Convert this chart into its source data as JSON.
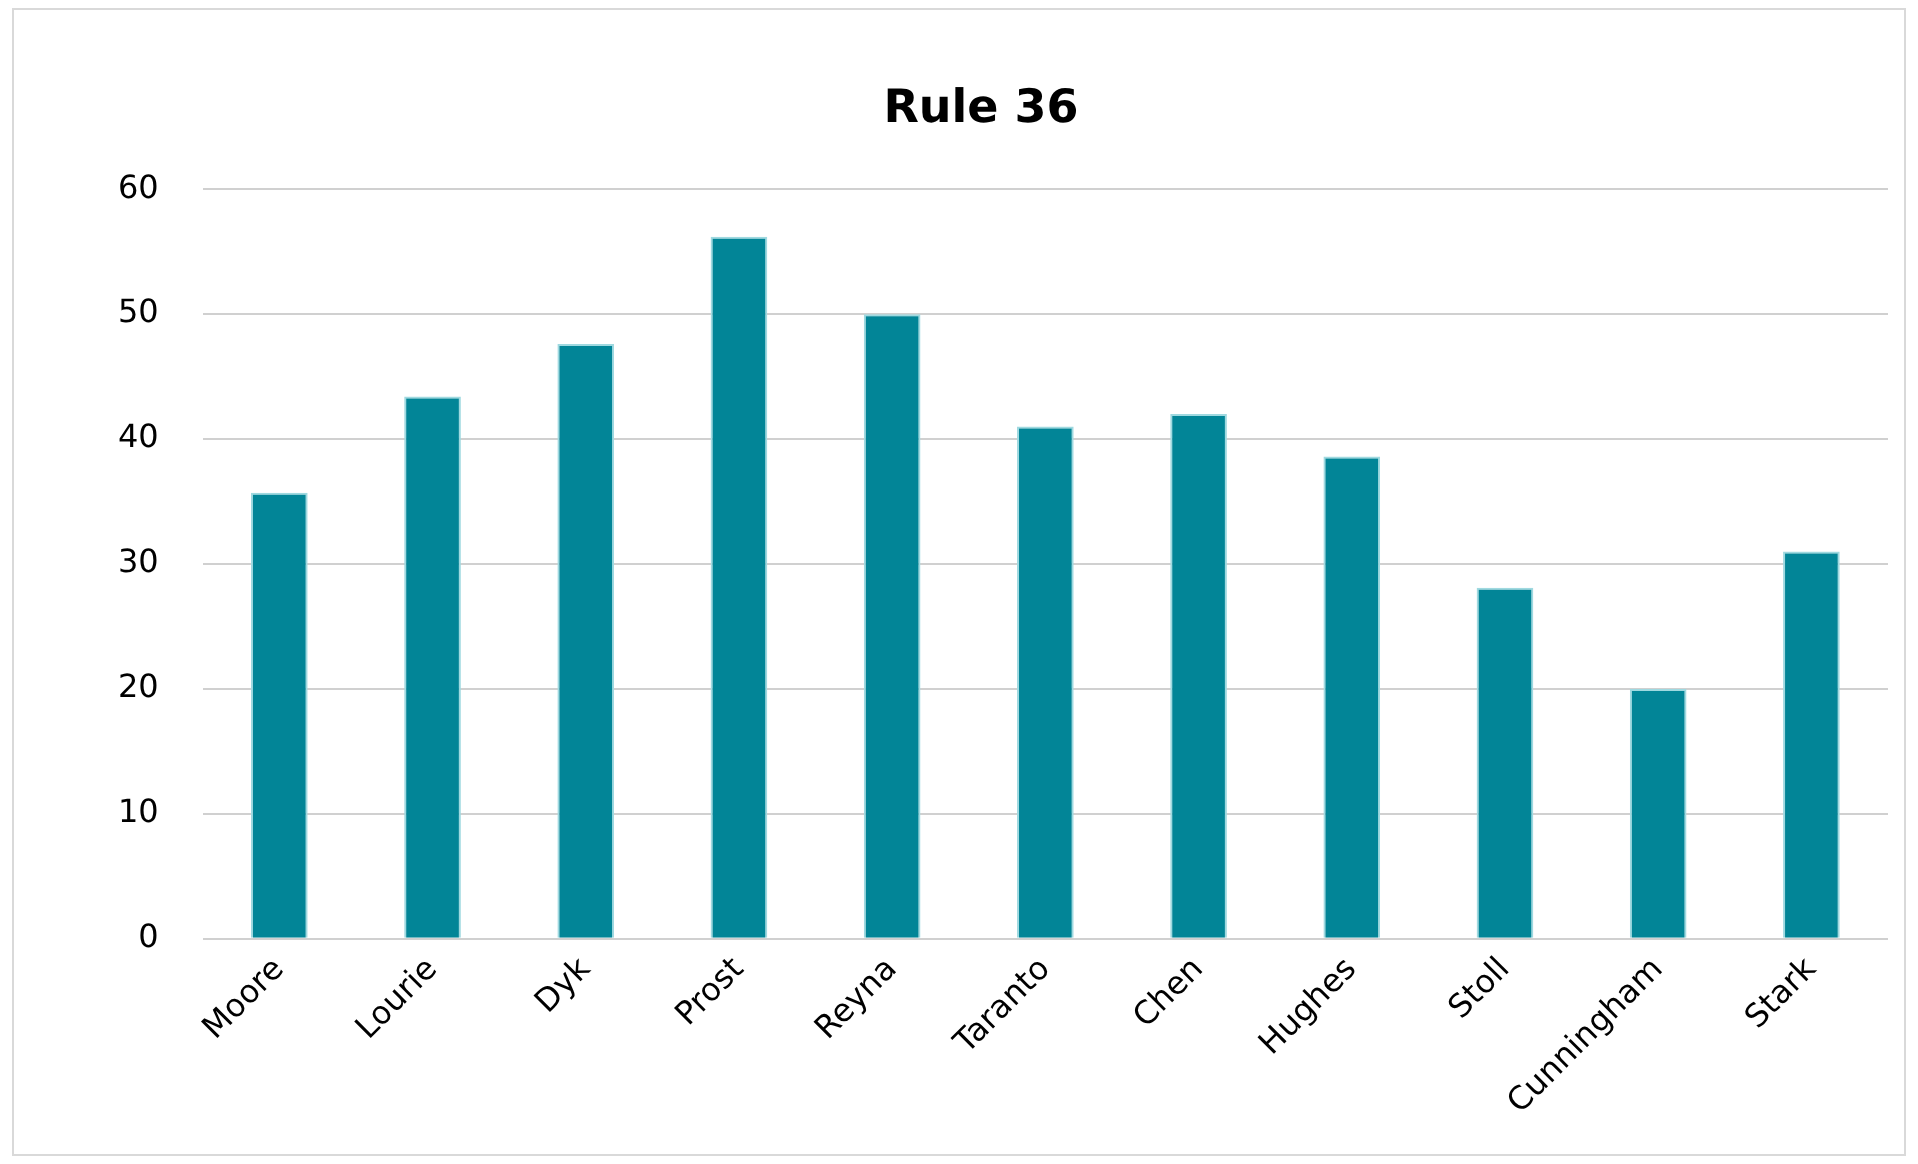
{
  "chart_data": {
    "type": "bar",
    "title": "Rule 36",
    "categories": [
      "Moore",
      "Lourie",
      "Dyk",
      "Prost",
      "Reyna",
      "Taranto",
      "Chen",
      "Hughes",
      "Stoll",
      "Cunningham",
      "Stark"
    ],
    "values": [
      35.7,
      43.4,
      47.6,
      56.2,
      50.0,
      41.0,
      42.0,
      38.6,
      28.1,
      20.0,
      31.0
    ],
    "color": "#028597",
    "ylim": [
      0,
      60
    ],
    "yticks": [
      0,
      10,
      20,
      30,
      40,
      50,
      60
    ],
    "grid": "y",
    "legend": false
  }
}
